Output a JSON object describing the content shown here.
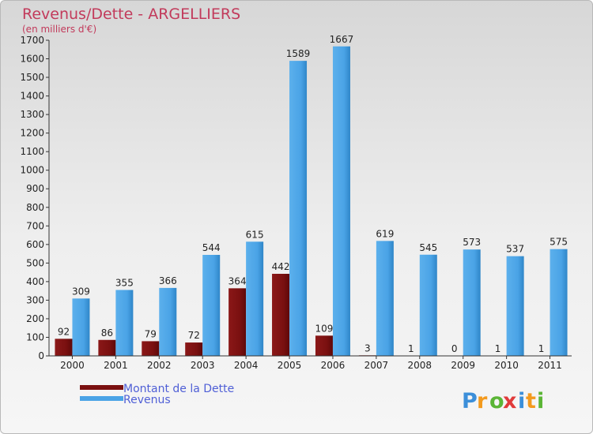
{
  "chart_data": {
    "type": "bar",
    "title": "Revenus/Dette - ARGELLIERS",
    "subtitle": "(en milliers d'€)",
    "categories": [
      "2000",
      "2001",
      "2002",
      "2003",
      "2004",
      "2005",
      "2006",
      "2007",
      "2008",
      "2009",
      "2010",
      "2011"
    ],
    "series": [
      {
        "name": "Montant de la Dette",
        "color": "#7a1010",
        "values": [
          92,
          86,
          79,
          72,
          364,
          442,
          109,
          3,
          1,
          0,
          1,
          1
        ]
      },
      {
        "name": "Revenus",
        "color": "#4aa3e6",
        "values": [
          309,
          355,
          366,
          544,
          615,
          1589,
          1667,
          619,
          545,
          573,
          537,
          575
        ]
      }
    ],
    "ylim": [
      0,
      1700
    ],
    "yticks": [
      0,
      100,
      200,
      300,
      400,
      500,
      600,
      700,
      800,
      900,
      1000,
      1100,
      1200,
      1300,
      1400,
      1500,
      1600,
      1700
    ],
    "grid": false,
    "legend_position": "bottom-left"
  },
  "logo": {
    "letters": [
      "P",
      "r",
      "o",
      "x",
      "i",
      "t",
      "i"
    ],
    "colors": [
      "#3c8fd9",
      "#f39a1e",
      "#5bb536",
      "#e03a3a",
      "#3c8fd9",
      "#f39a1e",
      "#5bb536"
    ]
  }
}
